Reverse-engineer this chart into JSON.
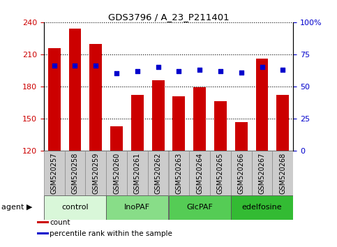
{
  "title": "GDS3796 / A_23_P211401",
  "samples": [
    "GSM520257",
    "GSM520258",
    "GSM520259",
    "GSM520260",
    "GSM520261",
    "GSM520262",
    "GSM520263",
    "GSM520264",
    "GSM520265",
    "GSM520266",
    "GSM520267",
    "GSM520268"
  ],
  "counts": [
    216,
    234,
    220,
    143,
    172,
    186,
    171,
    179,
    166,
    147,
    206,
    172
  ],
  "percentile_ranks": [
    66,
    66,
    66,
    60,
    62,
    65,
    62,
    63,
    62,
    61,
    65,
    63
  ],
  "agents": [
    {
      "label": "control",
      "start": 0,
      "end": 3,
      "color": "#d9f7d9"
    },
    {
      "label": "InoPAF",
      "start": 3,
      "end": 6,
      "color": "#88dd88"
    },
    {
      "label": "GlcPAF",
      "start": 6,
      "end": 9,
      "color": "#55cc55"
    },
    {
      "label": "edelfosine",
      "start": 9,
      "end": 12,
      "color": "#33bb33"
    }
  ],
  "ylim_left": [
    120,
    240
  ],
  "ylim_right": [
    0,
    100
  ],
  "yticks_left": [
    120,
    150,
    180,
    210,
    240
  ],
  "yticks_right": [
    0,
    25,
    50,
    75,
    100
  ],
  "ytick_labels_right": [
    "0",
    "25",
    "50",
    "75",
    "100%"
  ],
  "bar_color": "#cc0000",
  "dot_color": "#0000cc",
  "grid_color": "#000000",
  "bg_plot": "#ffffff",
  "xtick_bg": "#cccccc",
  "left_tick_color": "#cc0000",
  "right_tick_color": "#0000cc",
  "legend_items": [
    {
      "label": "count",
      "color": "#cc0000"
    },
    {
      "label": "percentile rank within the sample",
      "color": "#0000cc"
    }
  ]
}
